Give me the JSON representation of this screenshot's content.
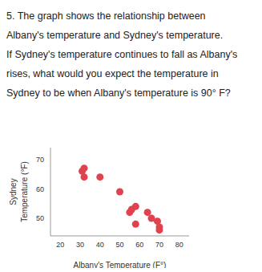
{
  "question": "5. The graph shows the relationship between\nAlbany's temperature and Sydney's temperature.\nIf Sydney's temperature continues to fall as Albany's\nrises, what would you expect the temperature in\nSydney to be when Albany's temperature is 90° F?",
  "chart_data": {
    "type": "scatter",
    "xlabel": "Albany's Temperature (F°)",
    "ylabel": "Sydney\nTemperature (°F)",
    "x": [
      31,
      32,
      32,
      40,
      50,
      56,
      58,
      55,
      58,
      64,
      66,
      69,
      70,
      70
    ],
    "values": [
      66,
      67,
      64,
      64,
      59,
      53,
      54,
      52,
      48,
      52,
      50,
      49,
      47,
      46
    ],
    "color": "#e0434d",
    "marker": "circle",
    "xlim": [
      15,
      85
    ],
    "xticks": [
      20,
      30,
      40,
      50,
      60,
      70,
      80
    ],
    "ylim": [
      44,
      74
    ],
    "yticks": [
      50,
      60,
      70
    ],
    "grid": false
  }
}
